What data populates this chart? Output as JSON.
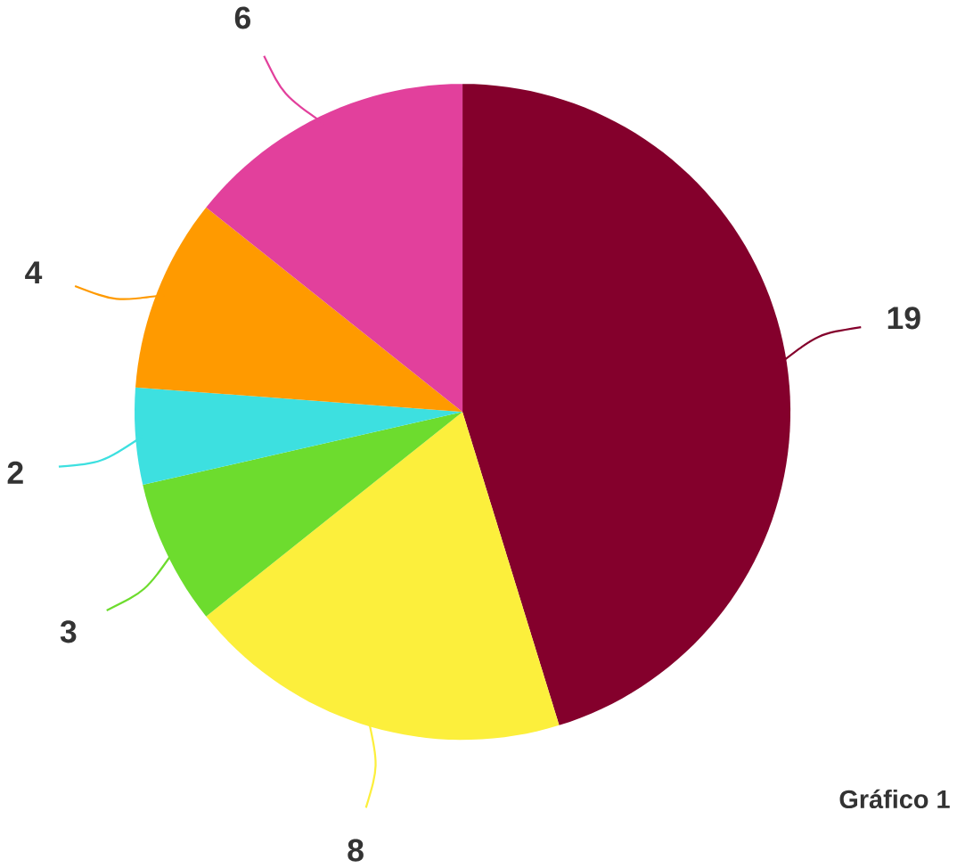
{
  "chart_data": {
    "type": "pie",
    "categories": [
      null,
      null,
      null,
      null,
      null,
      null
    ],
    "values": [
      19,
      8,
      3,
      2,
      4,
      6
    ],
    "colors": [
      "#84002c",
      "#fcef3c",
      "#6ddc2e",
      "#3de0e0",
      "#ff9a00",
      "#e2409c"
    ],
    "data_labels": true,
    "annotations": [
      "Gráfico 1"
    ]
  }
}
